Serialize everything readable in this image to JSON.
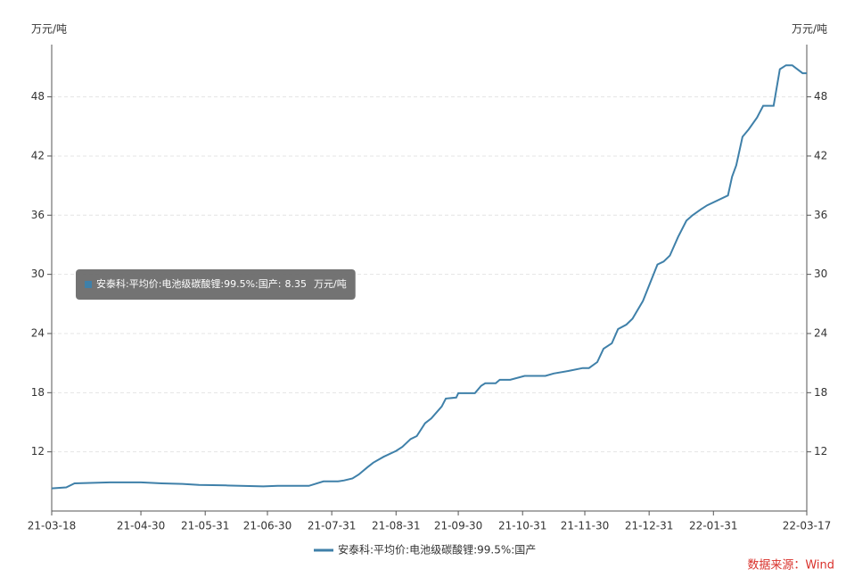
{
  "chart_data": {
    "type": "line",
    "y_label": "万元/吨",
    "y2_label": "万元/吨",
    "x": [
      "21-03-18",
      "21-03-25",
      "21-03-29",
      "21-04-15",
      "21-04-30",
      "21-05-10",
      "21-05-20",
      "21-05-28",
      "21-06-10",
      "21-06-28",
      "21-07-05",
      "21-07-20",
      "21-07-27",
      "21-08-03",
      "21-08-06",
      "21-08-10",
      "21-08-13",
      "21-08-17",
      "21-08-20",
      "21-08-25",
      "21-08-31",
      "21-09-03",
      "21-09-07",
      "21-09-10",
      "21-09-14",
      "21-09-17",
      "21-09-22",
      "21-09-24",
      "21-09-29",
      "21-09-30",
      "21-10-08",
      "21-10-11",
      "21-10-13",
      "21-10-18",
      "21-10-20",
      "21-10-25",
      "21-11-01",
      "21-11-11",
      "21-11-15",
      "21-11-22",
      "21-11-29",
      "21-12-02",
      "21-12-06",
      "21-12-09",
      "21-12-13",
      "21-12-16",
      "21-12-20",
      "21-12-23",
      "21-12-28",
      "22-01-04",
      "22-01-07",
      "22-01-10",
      "22-01-14",
      "22-01-18",
      "22-01-21",
      "22-01-25",
      "22-01-28",
      "22-02-07",
      "22-02-09",
      "22-02-11",
      "22-02-14",
      "22-02-17",
      "22-02-21",
      "22-02-24",
      "22-03-01",
      "22-03-04",
      "22-03-07",
      "22-03-10",
      "22-03-15",
      "22-03-17"
    ],
    "series": [
      {
        "name": "安泰科:平均价:电池级碳酸锂:99.5%:国产",
        "color": "#3f80a9",
        "values": [
          8.3,
          8.4,
          8.8,
          8.9,
          8.9,
          8.8,
          8.75,
          8.65,
          8.6,
          8.5,
          8.55,
          8.55,
          9.0,
          9.0,
          9.1,
          9.3,
          9.7,
          10.4,
          10.9,
          11.5,
          12.1,
          12.5,
          13.3,
          13.6,
          14.9,
          15.4,
          16.6,
          17.4,
          17.5,
          17.95,
          17.95,
          18.7,
          18.95,
          18.95,
          19.3,
          19.3,
          19.7,
          19.7,
          19.95,
          20.2,
          20.5,
          20.5,
          21.1,
          22.45,
          23.0,
          24.45,
          24.9,
          25.5,
          27.3,
          31.0,
          31.3,
          31.9,
          33.8,
          35.45,
          36.0,
          36.6,
          37.0,
          38.0,
          39.9,
          41.05,
          43.95,
          44.7,
          45.9,
          47.1,
          47.1,
          50.8,
          51.2,
          51.2,
          50.4,
          50.4
        ]
      }
    ],
    "xlim": [
      "21-03-18",
      "22-03-17"
    ],
    "xticks": [
      "21-03-18",
      "21-04-30",
      "21-05-31",
      "21-06-30",
      "21-07-31",
      "21-08-31",
      "21-09-30",
      "21-10-31",
      "21-11-30",
      "21-12-31",
      "22-01-31",
      "22-03-17"
    ],
    "ylim": [
      6,
      53.3
    ],
    "yticks": [
      12,
      18,
      24,
      30,
      36,
      42,
      48
    ],
    "y2lim": [
      6,
      53.3
    ],
    "y2ticks": [
      12,
      18,
      24,
      30,
      36,
      42,
      48
    ],
    "grid": true,
    "tooltip": {
      "text": "安泰科:平均价:电池级碳酸锂:99.5%:国产:",
      "value": 8.35,
      "unit": "万元/吨"
    },
    "source": "数据来源：Wind"
  }
}
